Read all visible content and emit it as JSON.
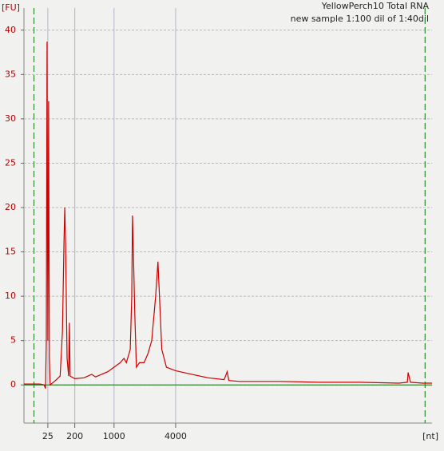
{
  "chart_data": {
    "type": "line",
    "title": "YellowPerch10 Total RNA",
    "subtitle": "new sample 1:100 dil of 1:40dil",
    "y_label": "[FU]",
    "x_label": "[nt]",
    "xlim": [
      17,
      70
    ],
    "ylim": [
      -4.3,
      42.5
    ],
    "xticks": [
      {
        "value": 20.1,
        "label": "25"
      },
      {
        "value": 23.6,
        "label": "200"
      },
      {
        "value": 28.7,
        "label": "1000"
      },
      {
        "value": 36.7,
        "label": "4000"
      }
    ],
    "yticks": [
      0,
      5,
      10,
      15,
      20,
      25,
      30,
      35,
      40
    ],
    "grid": true,
    "marker_lines": [
      18.3,
      69.1
    ],
    "marker_color": "#2e8b2e",
    "series": [
      {
        "color": "#cc0000",
        "x": [
          17.0,
          19.1,
          19.6,
          19.8,
          19.9,
          20.0,
          20.1,
          20.2,
          20.3,
          20.4,
          21.1,
          21.7,
          22.0,
          22.2,
          22.3,
          22.4,
          22.6,
          22.8,
          22.9,
          23.0,
          23.6,
          24.8,
          25.8,
          26.3,
          27.9,
          29.5,
          30.0,
          30.3,
          30.8,
          31.0,
          31.1,
          31.2,
          31.4,
          31.6,
          32.0,
          32.6,
          33.1,
          33.6,
          34.1,
          34.4,
          34.6,
          34.9,
          35.5,
          36.7,
          38.8,
          40.9,
          43.0,
          43.4,
          43.6,
          45.0,
          50.2,
          55.4,
          60.6,
          65.7,
          66.8,
          66.9,
          67.2,
          68.8,
          70.0
        ],
        "values": [
          0.1,
          0.1,
          0,
          -0.4,
          5,
          38.7,
          5,
          32,
          3,
          0,
          0.5,
          1,
          6,
          16,
          20,
          16,
          3,
          1,
          7,
          1,
          0.7,
          0.8,
          1.2,
          0.9,
          1.5,
          2.5,
          3.0,
          2.5,
          4,
          10,
          19.1,
          15.5,
          8,
          2,
          2.5,
          2.5,
          3.5,
          5,
          10,
          13.9,
          10,
          4,
          2,
          1.6,
          1.2,
          0.8,
          0.6,
          1.5,
          0.5,
          0.4,
          0.4,
          0.3,
          0.3,
          0.2,
          0.3,
          1.4,
          0.3,
          0.2,
          0.2
        ]
      }
    ]
  }
}
